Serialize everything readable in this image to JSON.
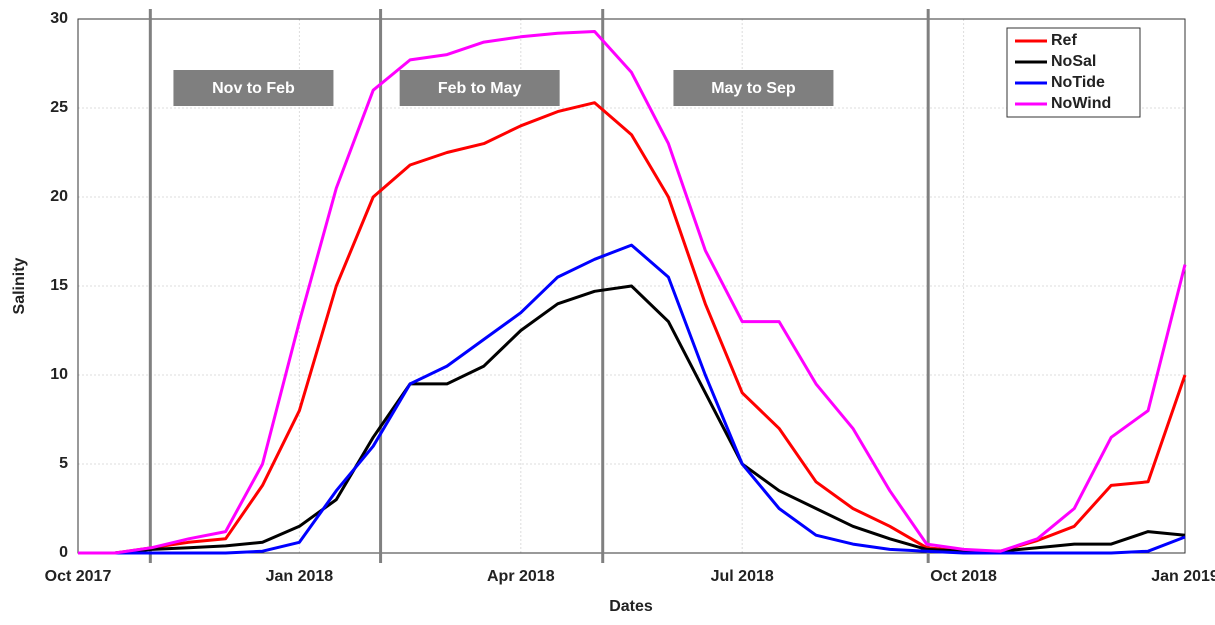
{
  "chart_data": {
    "type": "line",
    "xlabel": "Dates",
    "ylabel": "Salinity",
    "x": [
      0,
      0.5,
      1,
      1.5,
      2,
      2.5,
      3,
      3.5,
      4,
      4.5,
      5,
      5.5,
      6,
      6.5,
      7,
      7.5,
      8,
      8.5,
      9,
      9.5,
      10,
      10.5,
      11,
      11.5,
      12,
      12.5,
      13,
      13.5,
      14,
      14.5,
      15
    ],
    "series": [
      {
        "name": "Ref",
        "color": "#ff0000",
        "values": [
          0,
          0,
          0.3,
          0.6,
          0.8,
          3.8,
          8,
          15,
          20,
          21.8,
          22.5,
          23,
          24,
          24.8,
          25.3,
          23.5,
          20,
          14,
          9,
          7,
          4,
          2.5,
          1.5,
          0.3,
          0.1,
          0.1,
          0.7,
          1.5,
          3.8,
          4,
          10
        ]
      },
      {
        "name": "NoSal",
        "color": "#000000",
        "values": [
          0,
          0,
          0.2,
          0.3,
          0.4,
          0.6,
          1.5,
          3,
          6.5,
          9.5,
          9.5,
          10.5,
          12.5,
          14,
          14.7,
          15,
          13,
          9,
          5,
          3.5,
          2.5,
          1.5,
          0.8,
          0.2,
          0.1,
          0.1,
          0.3,
          0.5,
          0.5,
          1.2,
          1
        ]
      },
      {
        "name": "NoTide",
        "color": "#0000ff",
        "values": [
          0,
          0,
          0,
          0,
          0,
          0.1,
          0.6,
          3.5,
          6,
          9.5,
          10.5,
          12,
          13.5,
          15.5,
          16.5,
          17.3,
          15.5,
          10,
          5,
          2.5,
          1,
          0.5,
          0.2,
          0.1,
          0,
          0,
          0,
          0,
          0,
          0.1,
          0.9
        ]
      },
      {
        "name": "NoWind",
        "color": "#ff00ff",
        "values": [
          0,
          0,
          0.3,
          0.8,
          1.2,
          5,
          13,
          20.5,
          26,
          27.7,
          28,
          28.7,
          29,
          29.2,
          29.3,
          27,
          23,
          17,
          13,
          13,
          9.5,
          7,
          3.5,
          0.5,
          0.2,
          0.1,
          0.8,
          2.5,
          6.5,
          8,
          16.2
        ]
      }
    ],
    "xlim": [
      0,
      15
    ],
    "xticks": [
      {
        "value": 0,
        "label": "Oct 2017"
      },
      {
        "value": 3,
        "label": "Jan 2018"
      },
      {
        "value": 6,
        "label": "Apr 2018"
      },
      {
        "value": 9,
        "label": "Jul 2018"
      },
      {
        "value": 12,
        "label": "Oct 2018"
      },
      {
        "value": 15,
        "label": "Jan 2019"
      }
    ],
    "ylim": [
      0,
      30
    ],
    "yticks": [
      0,
      5,
      10,
      15,
      20,
      25,
      30
    ],
    "grid": true,
    "legend": "upper right",
    "dividers": [
      0.98,
      4.1,
      7.11,
      11.52
    ],
    "periods": [
      "Nov to Feb",
      "Feb to May",
      "May to Sep"
    ]
  }
}
